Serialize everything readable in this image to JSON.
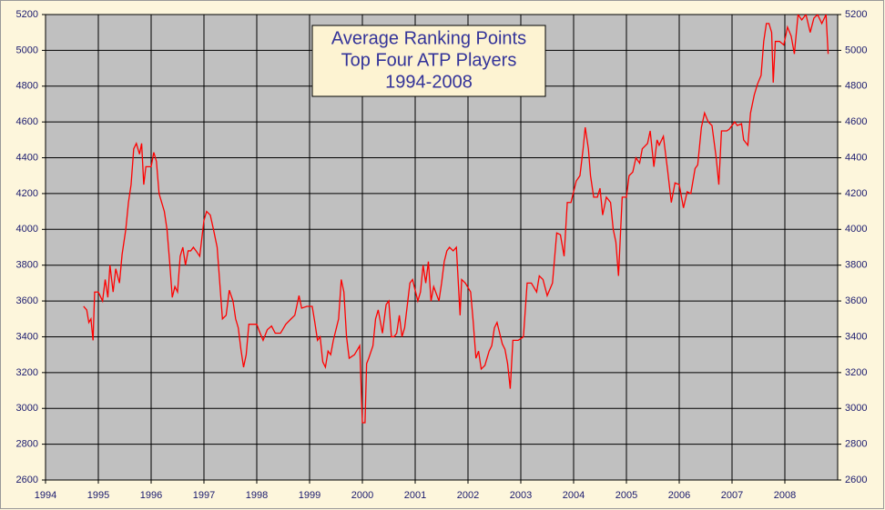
{
  "chart_data": {
    "type": "line",
    "title": [
      "Average Ranking Points",
      "Top Four ATP Players",
      "1994-2008"
    ],
    "xlim": [
      1994,
      2009
    ],
    "xticks": [
      1994,
      1995,
      1996,
      1997,
      1998,
      1999,
      2000,
      2001,
      2002,
      2003,
      2004,
      2005,
      2006,
      2007,
      2008
    ],
    "ylim": [
      2600,
      5200
    ],
    "yticks": [
      2600,
      2800,
      3000,
      3200,
      3400,
      3600,
      3800,
      4000,
      4200,
      4400,
      4600,
      4800,
      5000,
      5200
    ],
    "y2lim": [
      2600,
      5200
    ],
    "y2ticks": [
      2600,
      2800,
      3000,
      3200,
      3400,
      3600,
      3800,
      4000,
      4200,
      4400,
      4600,
      4800,
      5000,
      5200
    ],
    "grid": true,
    "series": [
      {
        "color": "#ff0000",
        "x": [
          1994.72,
          1994.78,
          1994.82,
          1994.86,
          1994.88,
          1994.9,
          1994.93,
          1995.0,
          1995.08,
          1995.13,
          1995.18,
          1995.22,
          1995.28,
          1995.33,
          1995.4,
          1995.45,
          1995.52,
          1995.57,
          1995.62,
          1995.67,
          1995.72,
          1995.78,
          1995.82,
          1995.86,
          1995.9,
          1995.95,
          1996.0,
          1996.05,
          1996.1,
          1996.15,
          1996.2,
          1996.25,
          1996.3,
          1996.35,
          1996.4,
          1996.45,
          1996.5,
          1996.55,
          1996.6,
          1996.65,
          1996.7,
          1996.75,
          1996.8,
          1996.85,
          1996.92,
          1997.0,
          1997.05,
          1997.12,
          1997.18,
          1997.25,
          1997.3,
          1997.35,
          1997.42,
          1997.48,
          1997.55,
          1997.6,
          1997.65,
          1997.7,
          1997.75,
          1997.8,
          1997.85,
          1997.95,
          1998.0,
          1998.05,
          1998.12,
          1998.2,
          1998.28,
          1998.35,
          1998.45,
          1998.55,
          1998.65,
          1998.72,
          1998.8,
          1998.85,
          1998.95,
          1999.05,
          1999.1,
          1999.15,
          1999.2,
          1999.25,
          1999.3,
          1999.35,
          1999.4,
          1999.45,
          1999.55,
          1999.6,
          1999.65,
          1999.7,
          1999.75,
          1999.85,
          1999.95,
          2000.0,
          2000.05,
          2000.08,
          2000.12,
          2000.2,
          2000.25,
          2000.3,
          2000.38,
          2000.45,
          2000.5,
          2000.55,
          2000.6,
          2000.65,
          2000.7,
          2000.75,
          2000.8,
          2000.9,
          2000.95,
          2001.05,
          2001.1,
          2001.15,
          2001.2,
          2001.25,
          2001.3,
          2001.35,
          2001.45,
          2001.5,
          2001.55,
          2001.6,
          2001.65,
          2001.72,
          2001.78,
          2001.85,
          2001.88,
          2001.95,
          2002.05,
          2002.1,
          2002.15,
          2002.2,
          2002.25,
          2002.32,
          2002.4,
          2002.45,
          2002.5,
          2002.55,
          2002.6,
          2002.65,
          2002.7,
          2002.75,
          2002.8,
          2002.85,
          2002.95,
          2003.05,
          2003.12,
          2003.2,
          2003.3,
          2003.35,
          2003.42,
          2003.5,
          2003.6,
          2003.68,
          2003.75,
          2003.82,
          2003.88,
          2003.95,
          2004.05,
          2004.12,
          2004.18,
          2004.22,
          2004.28,
          2004.32,
          2004.38,
          2004.45,
          2004.5,
          2004.55,
          2004.62,
          2004.7,
          2004.75,
          2004.8,
          2004.85,
          2004.92,
          2005.0,
          2005.05,
          2005.12,
          2005.18,
          2005.25,
          2005.3,
          2005.4,
          2005.45,
          2005.52,
          2005.58,
          2005.62,
          2005.7,
          2005.78,
          2005.85,
          2005.92,
          2006.0,
          2006.08,
          2006.15,
          2006.22,
          2006.3,
          2006.35,
          2006.42,
          2006.48,
          2006.55,
          2006.62,
          2006.7,
          2006.75,
          2006.8,
          2006.9,
          2006.95,
          2007.05,
          2007.1,
          2007.18,
          2007.22,
          2007.3,
          2007.35,
          2007.42,
          2007.48,
          2007.55,
          2007.6,
          2007.65,
          2007.7,
          2007.75,
          2007.78,
          2007.82,
          2007.9,
          2007.98,
          2008.05,
          2008.12,
          2008.18,
          2008.25,
          2008.32,
          2008.4,
          2008.48,
          2008.55,
          2008.62,
          2008.7,
          2008.78,
          2008.82
        ],
        "values": [
          3570,
          3550,
          3480,
          3500,
          3440,
          3380,
          3650,
          3650,
          3600,
          3720,
          3620,
          3800,
          3650,
          3780,
          3700,
          3860,
          4000,
          4150,
          4250,
          4450,
          4480,
          4420,
          4480,
          4250,
          4350,
          4350,
          4350,
          4430,
          4380,
          4200,
          4150,
          4100,
          4000,
          3820,
          3620,
          3680,
          3650,
          3850,
          3900,
          3800,
          3880,
          3880,
          3900,
          3880,
          3850,
          4050,
          4100,
          4080,
          4000,
          3900,
          3700,
          3500,
          3520,
          3660,
          3600,
          3500,
          3450,
          3330,
          3230,
          3300,
          3470,
          3470,
          3470,
          3430,
          3380,
          3440,
          3460,
          3420,
          3420,
          3470,
          3500,
          3520,
          3630,
          3560,
          3570,
          3570,
          3480,
          3380,
          3400,
          3260,
          3230,
          3320,
          3300,
          3380,
          3500,
          3720,
          3650,
          3400,
          3280,
          3300,
          3350,
          2920,
          2920,
          3250,
          3280,
          3350,
          3500,
          3550,
          3420,
          3580,
          3600,
          3400,
          3400,
          3420,
          3520,
          3400,
          3450,
          3700,
          3720,
          3600,
          3650,
          3800,
          3700,
          3820,
          3600,
          3680,
          3600,
          3700,
          3820,
          3880,
          3900,
          3880,
          3900,
          3520,
          3720,
          3700,
          3650,
          3480,
          3280,
          3320,
          3220,
          3240,
          3320,
          3350,
          3450,
          3480,
          3420,
          3360,
          3330,
          3250,
          3110,
          3380,
          3380,
          3400,
          3700,
          3700,
          3650,
          3740,
          3720,
          3630,
          3700,
          3980,
          3970,
          3850,
          4150,
          4150,
          4270,
          4300,
          4450,
          4570,
          4450,
          4300,
          4180,
          4180,
          4230,
          4080,
          4180,
          4150,
          4000,
          3930,
          3740,
          4180,
          4180,
          4300,
          4320,
          4400,
          4370,
          4450,
          4480,
          4550,
          4350,
          4500,
          4470,
          4520,
          4330,
          4150,
          4260,
          4250,
          4120,
          4210,
          4200,
          4340,
          4360,
          4570,
          4650,
          4600,
          4580,
          4400,
          4250,
          4550,
          4550,
          4560,
          4600,
          4580,
          4590,
          4500,
          4470,
          4650,
          4750,
          4810,
          4860,
          5050,
          5150,
          5150,
          5100,
          4820,
          5050,
          5050,
          5030,
          5130,
          5080,
          4980,
          5200,
          5170,
          5200,
          5100,
          5180,
          5200,
          5150,
          5200,
          4980
        ]
      }
    ]
  }
}
